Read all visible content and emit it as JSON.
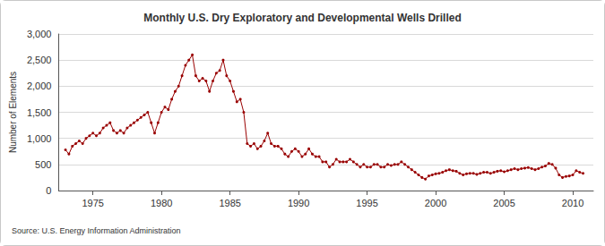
{
  "chart_data": {
    "type": "line",
    "title": "Monthly U.S. Dry Exploratory and Developmental Wells Drilled",
    "y_label": "Number of Elements",
    "annotations": [
      "Source: U.S. Energy Information Administration"
    ],
    "color": "#990000",
    "marker": "circle",
    "line_style": "solid",
    "grid": true,
    "xlim": [
      1972.5,
      2011.5
    ],
    "xticks": [
      1975,
      1980,
      1985,
      1990,
      1995,
      2000,
      2005,
      2010
    ],
    "ylim": [
      0,
      3000
    ],
    "yticks": [
      0,
      500,
      {
        "value": 1000,
        "label": "1,000"
      },
      {
        "value": 1500,
        "label": "1,500"
      },
      {
        "value": 2000,
        "label": "2,000"
      },
      {
        "value": 2500,
        "label": "2,500"
      },
      {
        "value": 3000,
        "label": "3,000"
      }
    ],
    "x": [
      1973.0,
      1973.25,
      1973.5,
      1973.75,
      1974.0,
      1974.25,
      1974.5,
      1974.75,
      1975.0,
      1975.25,
      1975.5,
      1975.75,
      1976.0,
      1976.25,
      1976.5,
      1976.75,
      1977.0,
      1977.25,
      1977.5,
      1977.75,
      1978.0,
      1978.25,
      1978.5,
      1978.75,
      1979.0,
      1979.25,
      1979.5,
      1979.75,
      1980.0,
      1980.25,
      1980.5,
      1980.75,
      1981.0,
      1981.25,
      1981.5,
      1981.75,
      1982.0,
      1982.25,
      1982.5,
      1982.75,
      1983.0,
      1983.25,
      1983.5,
      1983.75,
      1984.0,
      1984.25,
      1984.5,
      1984.75,
      1985.0,
      1985.25,
      1985.5,
      1985.75,
      1986.0,
      1986.25,
      1986.5,
      1986.75,
      1987.0,
      1987.25,
      1987.5,
      1987.75,
      1988.0,
      1988.25,
      1988.5,
      1988.75,
      1989.0,
      1989.25,
      1989.5,
      1989.75,
      1990.0,
      1990.25,
      1990.5,
      1990.75,
      1991.0,
      1991.25,
      1991.5,
      1991.75,
      1992.0,
      1992.25,
      1992.5,
      1992.75,
      1993.0,
      1993.25,
      1993.5,
      1993.75,
      1994.0,
      1994.25,
      1994.5,
      1994.75,
      1995.0,
      1995.25,
      1995.5,
      1995.75,
      1996.0,
      1996.25,
      1996.5,
      1996.75,
      1997.0,
      1997.25,
      1997.5,
      1997.75,
      1998.0,
      1998.25,
      1998.5,
      1998.75,
      1999.0,
      1999.25,
      1999.5,
      1999.75,
      2000.0,
      2000.25,
      2000.5,
      2000.75,
      2001.0,
      2001.25,
      2001.5,
      2001.75,
      2002.0,
      2002.25,
      2002.5,
      2002.75,
      2003.0,
      2003.25,
      2003.5,
      2003.75,
      2004.0,
      2004.25,
      2004.5,
      2004.75,
      2005.0,
      2005.25,
      2005.5,
      2005.75,
      2006.0,
      2006.25,
      2006.5,
      2006.75,
      2007.0,
      2007.25,
      2007.5,
      2007.75,
      2008.0,
      2008.25,
      2008.5,
      2008.75,
      2009.0,
      2009.25,
      2009.5,
      2009.75,
      2010.0,
      2010.25,
      2010.5,
      2010.75
    ],
    "values": [
      780,
      700,
      850,
      900,
      950,
      900,
      1000,
      1050,
      1100,
      1050,
      1100,
      1200,
      1250,
      1300,
      1150,
      1100,
      1150,
      1100,
      1200,
      1250,
      1300,
      1350,
      1400,
      1450,
      1500,
      1300,
      1100,
      1300,
      1500,
      1600,
      1550,
      1750,
      1900,
      2000,
      2200,
      2400,
      2500,
      2600,
      2200,
      2100,
      2150,
      2100,
      1900,
      2100,
      2250,
      2300,
      2500,
      2200,
      2100,
      1900,
      1700,
      1750,
      1500,
      900,
      850,
      900,
      800,
      850,
      950,
      1100,
      900,
      850,
      850,
      800,
      700,
      650,
      750,
      800,
      750,
      650,
      700,
      800,
      700,
      650,
      650,
      550,
      550,
      450,
      500,
      600,
      550,
      550,
      550,
      600,
      550,
      500,
      450,
      500,
      450,
      450,
      500,
      500,
      450,
      450,
      500,
      480,
      500,
      500,
      550,
      500,
      450,
      400,
      350,
      300,
      250,
      220,
      280,
      300,
      320,
      330,
      350,
      380,
      400,
      380,
      370,
      330,
      300,
      320,
      330,
      330,
      310,
      330,
      350,
      350,
      330,
      350,
      370,
      380,
      360,
      380,
      400,
      420,
      400,
      420,
      430,
      440,
      420,
      400,
      420,
      450,
      470,
      520,
      500,
      430,
      300,
      250,
      270,
      280,
      300,
      380,
      350,
      330
    ]
  }
}
